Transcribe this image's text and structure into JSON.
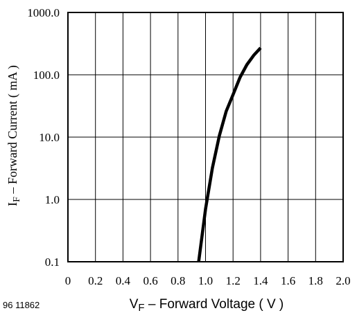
{
  "chart_data": {
    "type": "line",
    "yscale": "log",
    "xlim": [
      0,
      2.0
    ],
    "ylim": [
      0.1,
      1000.0
    ],
    "grid": true,
    "x_ticks": [
      "0",
      "0.2",
      "0.4",
      "0.6",
      "0.8",
      "1.0",
      "1.2",
      "1.4",
      "1.6",
      "1.8",
      "2.0"
    ],
    "y_ticks": [
      "0.1",
      "1.0",
      "10.0",
      "100.0",
      "1000.0"
    ],
    "xlabel": {
      "main": "V",
      "sub": "F",
      "rest": " – Forward Voltage ( V )"
    },
    "ylabel": {
      "main": "I",
      "sub": "F",
      "rest": " – Forward Current ( mA )"
    },
    "series": [
      {
        "x": [
          0.95,
          1.0,
          1.05,
          1.1,
          1.15,
          1.2,
          1.25,
          1.3,
          1.35,
          1.4
        ],
        "y": [
          0.1,
          0.7,
          3.2,
          10.5,
          26,
          48,
          90,
          145,
          205,
          270
        ]
      }
    ]
  },
  "figure_id": "96 11862"
}
